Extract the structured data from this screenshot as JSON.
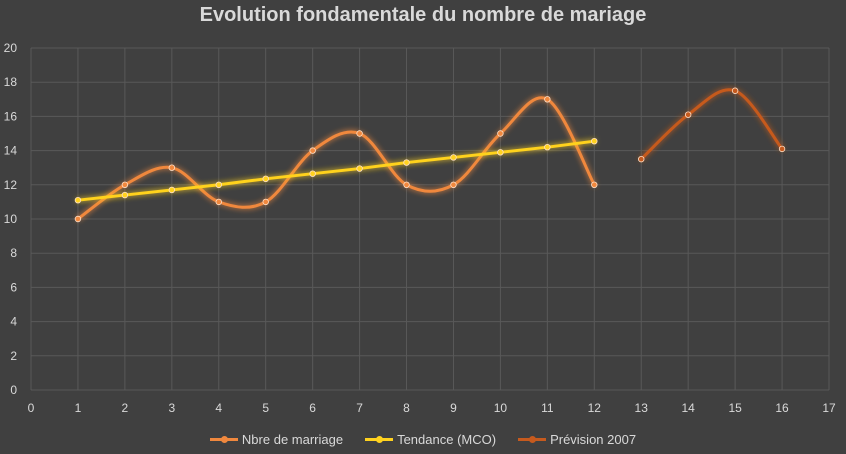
{
  "chart_data": {
    "type": "line",
    "title": "Evolution fondamentale du nombre de mariage",
    "xlim": [
      0,
      17
    ],
    "ylim": [
      0,
      20
    ],
    "xticks": [
      0,
      1,
      2,
      3,
      4,
      5,
      6,
      7,
      8,
      9,
      10,
      11,
      12,
      13,
      14,
      15,
      16,
      17
    ],
    "yticks": [
      0,
      2,
      4,
      6,
      8,
      10,
      12,
      14,
      16,
      18,
      20
    ],
    "grid": true,
    "legend_position": "bottom",
    "series": [
      {
        "name": "Nbre de marriage",
        "color": "#f0883e",
        "smooth": true,
        "points": [
          [
            1,
            10
          ],
          [
            2,
            12
          ],
          [
            3,
            13
          ],
          [
            4,
            11
          ],
          [
            5,
            11
          ],
          [
            6,
            14
          ],
          [
            7,
            15
          ],
          [
            8,
            12
          ],
          [
            9,
            12
          ],
          [
            10,
            15
          ],
          [
            11,
            17
          ],
          [
            12,
            12
          ]
        ]
      },
      {
        "name": "Tendance (MCO)",
        "color": "#ffd21f",
        "smooth": false,
        "points": [
          [
            1,
            11.1
          ],
          [
            2,
            11.4
          ],
          [
            3,
            11.7
          ],
          [
            4,
            12.0
          ],
          [
            5,
            12.35
          ],
          [
            6,
            12.65
          ],
          [
            7,
            12.95
          ],
          [
            8,
            13.3
          ],
          [
            9,
            13.6
          ],
          [
            10,
            13.9
          ],
          [
            11,
            14.2
          ],
          [
            12,
            14.55
          ]
        ]
      },
      {
        "name": "Prévision 2007",
        "color": "#c65a1e",
        "smooth": true,
        "points": [
          [
            13,
            13.5
          ],
          [
            14,
            16.1
          ],
          [
            15,
            17.5
          ],
          [
            16,
            14.1
          ]
        ]
      }
    ]
  }
}
